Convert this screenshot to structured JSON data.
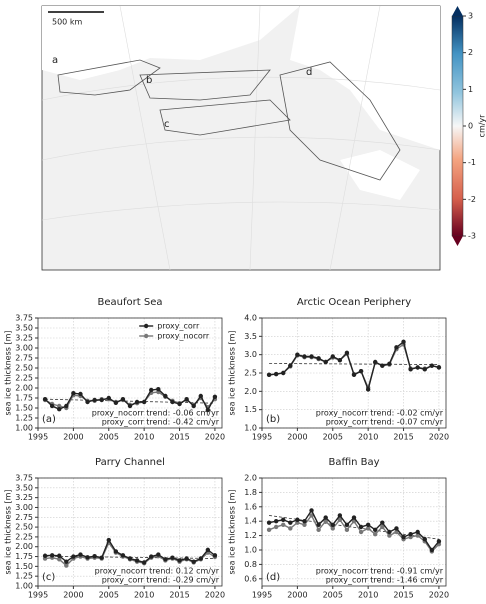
{
  "map": {
    "scale_bar": "500 km",
    "region_labels": [
      "a",
      "b",
      "c",
      "d"
    ]
  },
  "colorbar": {
    "label": "cm/yr",
    "lim": [
      -3,
      3
    ],
    "ticks": [
      -3,
      -2,
      -1,
      0,
      1,
      2,
      3
    ]
  },
  "chart_data": [
    {
      "type": "line",
      "title": "Beaufort Sea",
      "panel": "(a)",
      "ylabel": "sea ice thickness [m]",
      "x": [
        1996,
        1997,
        1998,
        1999,
        2000,
        2001,
        2002,
        2003,
        2004,
        2005,
        2006,
        2007,
        2008,
        2009,
        2010,
        2011,
        2012,
        2013,
        2014,
        2015,
        2016,
        2017,
        2018,
        2019,
        2020
      ],
      "series": [
        {
          "name": "proxy_corr",
          "color": "#222222",
          "values": [
            1.72,
            1.55,
            1.47,
            1.55,
            1.87,
            1.85,
            1.65,
            1.7,
            1.7,
            1.75,
            1.63,
            1.72,
            1.55,
            1.65,
            1.65,
            1.95,
            1.97,
            1.8,
            1.65,
            1.6,
            1.72,
            1.55,
            1.8,
            1.45,
            1.78
          ]
        },
        {
          "name": "proxy_nocorr",
          "color": "#777777",
          "values": [
            1.7,
            1.6,
            1.55,
            1.5,
            1.82,
            1.8,
            1.68,
            1.68,
            1.72,
            1.72,
            1.65,
            1.7,
            1.58,
            1.62,
            1.65,
            1.88,
            1.9,
            1.78,
            1.68,
            1.62,
            1.7,
            1.58,
            1.75,
            1.52,
            1.72
          ]
        }
      ],
      "trend": {
        "x": [
          1996,
          2020
        ],
        "values": [
          1.72,
          1.62
        ]
      },
      "annotations": [
        {
          "text": "proxy_nocorr trend: -0.06 cm/yr",
          "color": "#888888"
        },
        {
          "text": "proxy_corr trend: -0.42 cm/yr",
          "color": "#888888"
        }
      ],
      "legend": "upper center",
      "xlim": [
        1995,
        2021
      ],
      "xticks": [
        1995,
        2000,
        2005,
        2010,
        2015,
        2020
      ],
      "ylim": [
        1.0,
        3.75
      ],
      "yticks": [
        {
          "value": 1.0,
          "label": "1.00"
        },
        {
          "value": 1.25,
          "label": "1.25"
        },
        {
          "value": 1.5,
          "label": "1.50"
        },
        {
          "value": 1.75,
          "label": "1.75"
        },
        {
          "value": 2.0,
          "label": "2.00"
        },
        {
          "value": 2.25,
          "label": "2.25"
        },
        {
          "value": 2.5,
          "label": "2.50"
        },
        {
          "value": 2.75,
          "label": "2.75"
        },
        {
          "value": 3.0,
          "label": "3.00"
        },
        {
          "value": 3.25,
          "label": "3.25"
        },
        {
          "value": 3.5,
          "label": "3.50"
        },
        {
          "value": 3.75,
          "label": "3.75"
        }
      ],
      "grid": true
    },
    {
      "type": "line",
      "title": "Arctic Ocean Periphery",
      "panel": "(b)",
      "ylabel": "sea ice thickness [m]",
      "x": [
        1996,
        1997,
        1998,
        1999,
        2000,
        2001,
        2002,
        2003,
        2004,
        2005,
        2006,
        2007,
        2008,
        2009,
        2010,
        2011,
        2012,
        2013,
        2014,
        2015,
        2016,
        2017,
        2018,
        2019,
        2020
      ],
      "series": [
        {
          "color": "#222222",
          "values": [
            2.45,
            2.47,
            2.5,
            2.7,
            3.0,
            2.95,
            2.95,
            2.9,
            2.8,
            2.95,
            2.85,
            3.05,
            2.45,
            2.55,
            2.05,
            2.8,
            2.7,
            2.75,
            3.2,
            3.35,
            2.6,
            2.65,
            2.6,
            2.7,
            2.65
          ]
        },
        {
          "color": "#777777",
          "values": [
            2.45,
            2.47,
            2.5,
            2.68,
            2.98,
            2.93,
            2.93,
            2.88,
            2.8,
            2.92,
            2.85,
            3.02,
            2.47,
            2.55,
            2.1,
            2.78,
            2.7,
            2.73,
            3.15,
            3.28,
            2.62,
            2.65,
            2.62,
            2.7,
            2.66
          ]
        }
      ],
      "trend": {
        "x": [
          1996,
          2020
        ],
        "values": [
          2.76,
          2.73
        ]
      },
      "annotations": [
        {
          "text": "proxy_nocorr trend: -0.02 cm/yr",
          "color": "#888888"
        },
        {
          "text": "proxy_corr trend: -0.07 cm/yr",
          "color": "#888888"
        }
      ],
      "xlim": [
        1995,
        2021
      ],
      "xticks": [
        1995,
        2000,
        2005,
        2010,
        2015,
        2020
      ],
      "ylim": [
        1.0,
        4.0
      ],
      "yticks": [
        {
          "value": 1.0,
          "label": "1.0"
        },
        {
          "value": 1.5,
          "label": "1.5"
        },
        {
          "value": 2.0,
          "label": "2.0"
        },
        {
          "value": 2.5,
          "label": "2.5"
        },
        {
          "value": 3.0,
          "label": "3.0"
        },
        {
          "value": 3.5,
          "label": "3.5"
        },
        {
          "value": 4.0,
          "label": "4.0"
        }
      ],
      "grid": true
    },
    {
      "type": "line",
      "title": "Parry Channel",
      "panel": "(c)",
      "ylabel": "sea ice thickness [m]",
      "x": [
        1996,
        1997,
        1998,
        1999,
        2000,
        2001,
        2002,
        2003,
        2004,
        2005,
        2006,
        2007,
        2008,
        2009,
        2010,
        2011,
        2012,
        2013,
        2014,
        2015,
        2016,
        2017,
        2018,
        2019,
        2020
      ],
      "series": [
        {
          "color": "#222222",
          "values": [
            1.77,
            1.78,
            1.77,
            1.62,
            1.75,
            1.8,
            1.73,
            1.76,
            1.72,
            2.17,
            1.88,
            1.78,
            1.7,
            1.65,
            1.6,
            1.75,
            1.8,
            1.68,
            1.72,
            1.65,
            1.7,
            1.62,
            1.7,
            1.92,
            1.78
          ]
        },
        {
          "color": "#777777",
          "values": [
            1.7,
            1.72,
            1.68,
            1.52,
            1.7,
            1.75,
            1.7,
            1.72,
            1.7,
            2.1,
            1.85,
            1.75,
            1.68,
            1.62,
            1.58,
            1.72,
            1.76,
            1.65,
            1.7,
            1.62,
            1.68,
            1.6,
            1.68,
            1.85,
            1.74
          ]
        }
      ],
      "trend": {
        "x": [
          1996,
          2020
        ],
        "values": [
          1.76,
          1.7
        ]
      },
      "annotations": [
        {
          "text": "proxy_nocorr trend: 0.12 cm/yr",
          "color": "#888888"
        },
        {
          "text": "proxy_corr trend: -0.29 cm/yr",
          "color": "#888888"
        }
      ],
      "xlim": [
        1995,
        2021
      ],
      "xticks": [
        1995,
        2000,
        2005,
        2010,
        2015,
        2020
      ],
      "ylim": [
        1.0,
        3.75
      ],
      "yticks": [
        {
          "value": 1.0,
          "label": "1.00"
        },
        {
          "value": 1.25,
          "label": "1.25"
        },
        {
          "value": 1.5,
          "label": "1.50"
        },
        {
          "value": 1.75,
          "label": "1.75"
        },
        {
          "value": 2.0,
          "label": "2.00"
        },
        {
          "value": 2.25,
          "label": "2.25"
        },
        {
          "value": 2.5,
          "label": "2.50"
        },
        {
          "value": 2.75,
          "label": "2.75"
        },
        {
          "value": 3.0,
          "label": "3.00"
        },
        {
          "value": 3.25,
          "label": "3.25"
        },
        {
          "value": 3.5,
          "label": "3.50"
        },
        {
          "value": 3.75,
          "label": "3.75"
        }
      ],
      "grid": true
    },
    {
      "type": "line",
      "title": "Baffin Bay",
      "panel": "(d)",
      "ylabel": "sea ice thickness [m]",
      "x": [
        1996,
        1997,
        1998,
        1999,
        2000,
        2001,
        2002,
        2003,
        2004,
        2005,
        2006,
        2007,
        2008,
        2009,
        2010,
        2011,
        2012,
        2013,
        2014,
        2015,
        2016,
        2017,
        2018,
        2019,
        2020
      ],
      "series": [
        {
          "color": "#222222",
          "values": [
            1.38,
            1.4,
            1.42,
            1.38,
            1.42,
            1.4,
            1.55,
            1.35,
            1.45,
            1.35,
            1.48,
            1.35,
            1.45,
            1.32,
            1.35,
            1.28,
            1.38,
            1.25,
            1.3,
            1.18,
            1.22,
            1.25,
            1.15,
            1.0,
            1.12
          ]
        },
        {
          "color": "#777777",
          "values": [
            1.28,
            1.32,
            1.35,
            1.3,
            1.38,
            1.35,
            1.48,
            1.28,
            1.4,
            1.3,
            1.42,
            1.28,
            1.4,
            1.25,
            1.3,
            1.22,
            1.32,
            1.2,
            1.25,
            1.15,
            1.18,
            1.2,
            1.12,
            0.98,
            1.08
          ]
        }
      ],
      "trend": {
        "x": [
          1996,
          2020
        ],
        "values": [
          1.48,
          1.15
        ]
      },
      "annotations": [
        {
          "text": "proxy_nocorr trend: -0.91 cm/yr",
          "color": "#222222"
        },
        {
          "text": "proxy_corr trend: -1.46 cm/yr",
          "color": "#222222"
        }
      ],
      "xlim": [
        1995,
        2021
      ],
      "xticks": [
        1995,
        2000,
        2005,
        2010,
        2015,
        2020
      ],
      "ylim": [
        0.5,
        2.0
      ],
      "yticks": [
        0.6,
        0.8,
        {
          "value": 1.0,
          "label": "1.0"
        },
        1.2,
        1.4,
        1.6,
        1.8,
        {
          "value": 2.0,
          "label": "2.0"
        }
      ],
      "grid": true
    }
  ]
}
